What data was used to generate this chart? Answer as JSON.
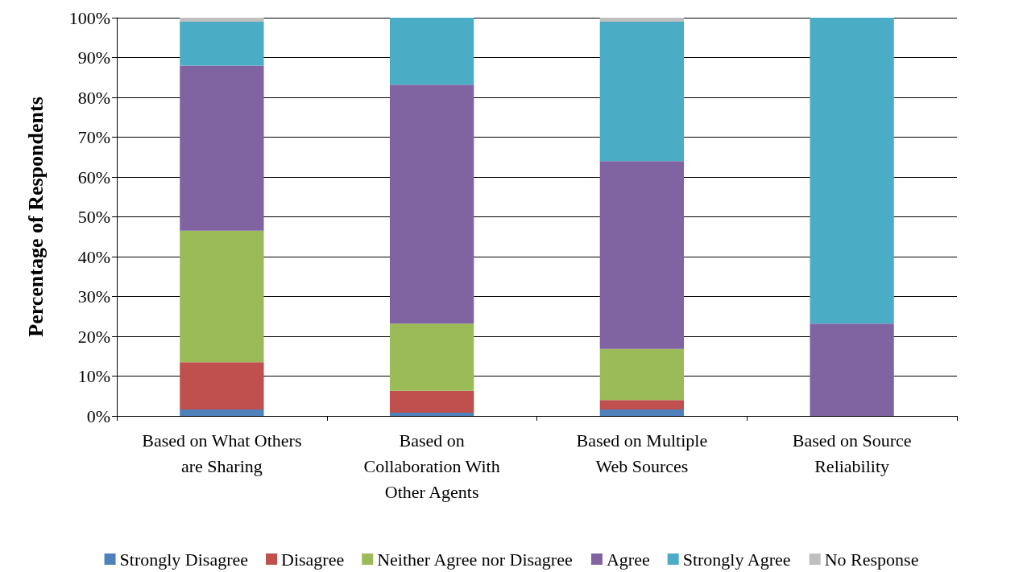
{
  "chart_data": {
    "type": "bar",
    "stacked": true,
    "ylabel": "Percentage of Respondents",
    "categories": [
      "Based on What Others are Sharing",
      "Based on Collaboration With Other Agents",
      "Based on Multiple Web Sources",
      "Based on Source Reliability"
    ],
    "series": [
      {
        "name": "Strongly Disagree",
        "color": "#4f81bd",
        "values": [
          1.6,
          0.8,
          1.6,
          0
        ]
      },
      {
        "name": "Disagree",
        "color": "#c0504d",
        "values": [
          11.9,
          5.5,
          2.4,
          0
        ]
      },
      {
        "name": "Neither Agree nor Disagree",
        "color": "#9bbb59",
        "values": [
          33,
          16.9,
          12.8,
          0
        ]
      },
      {
        "name": "Agree",
        "color": "#8064a2",
        "values": [
          41.5,
          60,
          47.2,
          23.2
        ]
      },
      {
        "name": "Strongly Agree",
        "color": "#4bacc6",
        "values": [
          11,
          16.8,
          35,
          76.8
        ]
      },
      {
        "name": "No Response",
        "color": "#bfbfbf",
        "values": [
          1,
          0,
          1,
          0
        ]
      }
    ],
    "ylim": [
      0,
      100
    ],
    "yticks": [
      {
        "value": 0,
        "label": "0%"
      },
      {
        "value": 10,
        "label": "10%"
      },
      {
        "value": 20,
        "label": "20%"
      },
      {
        "value": 30,
        "label": "30%"
      },
      {
        "value": 40,
        "label": "40%"
      },
      {
        "value": 50,
        "label": "50%"
      },
      {
        "value": 60,
        "label": "60%"
      },
      {
        "value": 70,
        "label": "70%"
      },
      {
        "value": 80,
        "label": "80%"
      },
      {
        "value": 90,
        "label": "90%"
      },
      {
        "value": 100,
        "label": "100%"
      }
    ],
    "grid": "y",
    "legend": "bottom"
  }
}
